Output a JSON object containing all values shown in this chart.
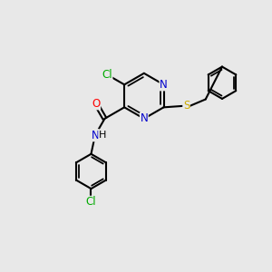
{
  "bg_color": "#e8e8e8",
  "atom_colors": {
    "C": "#000000",
    "N": "#0000cc",
    "O": "#ff0000",
    "S": "#ccaa00",
    "Cl": "#00aa00",
    "H": "#000000"
  },
  "bond_color": "#000000",
  "bond_width": 1.5,
  "figsize": [
    3.0,
    3.0
  ],
  "dpi": 100,
  "xlim": [
    0,
    10
  ],
  "ylim": [
    0,
    10
  ]
}
